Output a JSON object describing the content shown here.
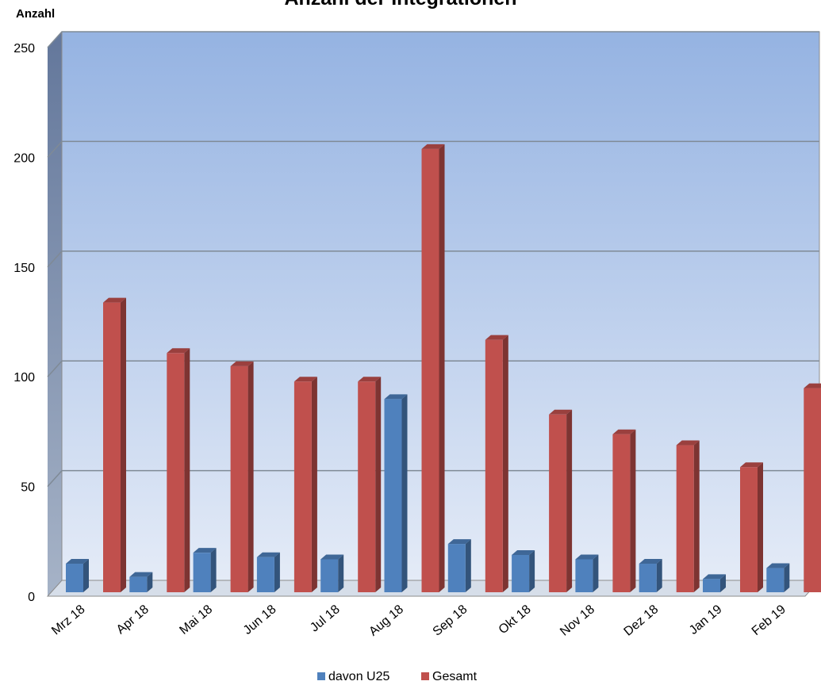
{
  "chart_data": {
    "type": "bar",
    "title": "Anzahl der Integrationen",
    "ylabel": "Anzahl",
    "xlabel": "",
    "categories": [
      "Mrz 18",
      "Apr 18",
      "Mai 18",
      "Jun 18",
      "Jul 18",
      "Aug 18",
      "Sep 18",
      "Okt 18",
      "Nov 18",
      "Dez 18",
      "Jan 19",
      "Feb 19"
    ],
    "series": [
      {
        "name": "davon U25",
        "color": "#4f81bd",
        "values": [
          13,
          7,
          18,
          16,
          15,
          88,
          22,
          17,
          15,
          13,
          6,
          11
        ]
      },
      {
        "name": "Gesamt",
        "color": "#c0504d",
        "values": [
          132,
          109,
          103,
          96,
          96,
          202,
          115,
          81,
          72,
          67,
          57,
          93
        ]
      }
    ],
    "ylim": [
      0,
      250
    ],
    "yticks": [
      "0",
      "50",
      "100",
      "150",
      "200",
      "250"
    ],
    "grid": true,
    "legend_position": "bottom",
    "style": "3d-clustered-column"
  }
}
